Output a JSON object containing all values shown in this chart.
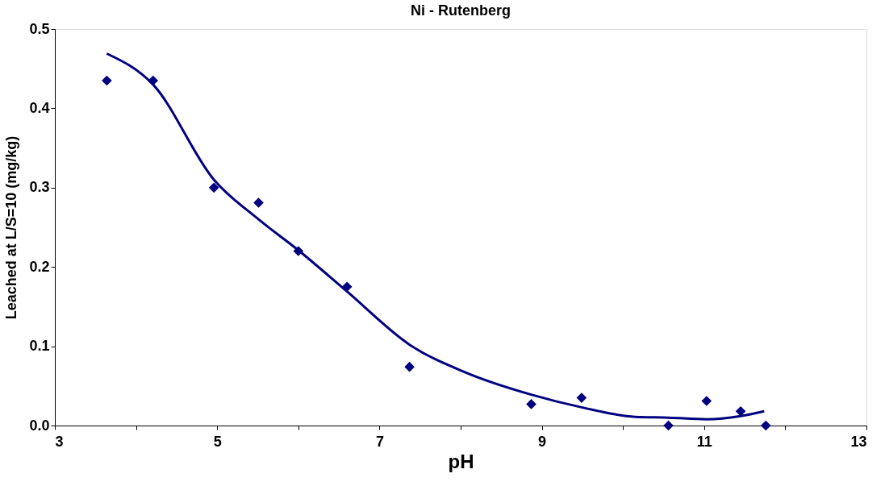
{
  "chart_data": {
    "type": "scatter",
    "title": "Ni - Rutenberg",
    "xlabel": "pH",
    "ylabel": "Leached at L/S=10   (mg/kg)",
    "xlim": [
      3,
      13
    ],
    "xticks": [
      3,
      {
        "value": 4,
        "label": null
      },
      5,
      {
        "value": 6,
        "label": null
      },
      7,
      {
        "value": 8,
        "label": null
      },
      9,
      {
        "value": 10,
        "label": null
      },
      11,
      {
        "value": 12,
        "label": null
      },
      13
    ],
    "ylim": [
      0,
      0.5
    ],
    "yticks": [
      {
        "value": 0,
        "label": "0.0"
      },
      0.1,
      0.2,
      0.3,
      0.4,
      0.5
    ],
    "grid": false,
    "marker": "diamond",
    "series": [
      {
        "color": "#000080",
        "x": [
          3.64,
          4.21,
          4.96,
          5.51,
          6.0,
          6.6,
          7.37,
          8.87,
          9.49,
          10.56,
          11.03,
          11.45,
          11.76
        ],
        "values": [
          0.435,
          0.435,
          0.3,
          0.281,
          0.22,
          0.175,
          0.074,
          0.027,
          0.035,
          0.0,
          0.031,
          0.018,
          0.0
        ]
      },
      {
        "type": "line",
        "color": "#000080",
        "marker": "none",
        "line_style": "solid",
        "x": [
          3.64,
          4.21,
          4.96,
          5.51,
          6.0,
          6.6,
          7.37,
          8.06,
          8.87,
          9.49,
          10.15,
          10.56,
          11.03,
          11.45,
          11.74
        ],
        "values": [
          0.469,
          0.43,
          0.31,
          0.26,
          0.221,
          0.169,
          0.102,
          0.067,
          0.039,
          0.023,
          0.011,
          0.01,
          0.008,
          0.012,
          0.018
        ]
      }
    ]
  }
}
